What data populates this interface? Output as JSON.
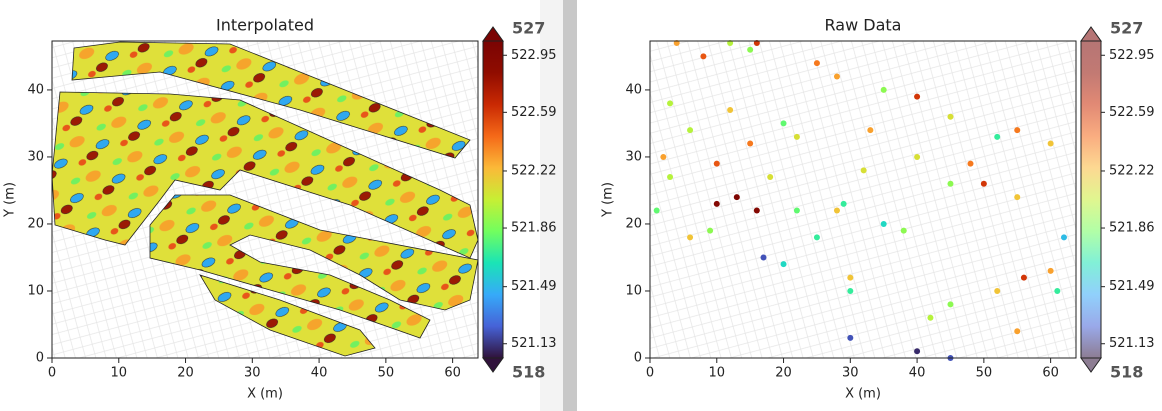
{
  "chart_data": [
    {
      "type": "heatmap",
      "title": "Interpolated",
      "xlabel": "X (m)",
      "ylabel": "Y (m)",
      "xlim": [
        0,
        63.8
      ],
      "ylim": [
        0,
        47.3
      ],
      "xticks": [
        0,
        10,
        20,
        30,
        40,
        50,
        60
      ],
      "yticks": [
        0,
        10,
        20,
        30,
        40
      ],
      "clim": [
        521.04,
        523.04
      ],
      "cticks": [
        522.95,
        522.59,
        522.22,
        521.86,
        521.49,
        521.13
      ],
      "cbar_max_label": 527,
      "cbar_min_label": 518
    },
    {
      "type": "scatter",
      "title": "Raw Data",
      "xlabel": "X (m)",
      "ylabel": "Y (m)",
      "xlim": [
        0,
        63.8
      ],
      "ylim": [
        0,
        47.3
      ],
      "xticks": [
        0,
        10,
        20,
        30,
        40,
        50,
        60
      ],
      "yticks": [
        0,
        10,
        20,
        30,
        40
      ],
      "clim": [
        521.04,
        523.04
      ],
      "cticks": [
        522.95,
        522.59,
        522.22,
        521.86,
        521.49,
        521.13
      ],
      "cbar_max_label": 527,
      "cbar_min_label": 518,
      "x": [
        4,
        8,
        12,
        16,
        25,
        35,
        45,
        52,
        60,
        55,
        40,
        28,
        15,
        3,
        12,
        20,
        22,
        15,
        6,
        2,
        10,
        18,
        3,
        1,
        6,
        9,
        10,
        13,
        16,
        17,
        20,
        30,
        42,
        55,
        45,
        30,
        25,
        22,
        28,
        35,
        38,
        29,
        32,
        45,
        55,
        62,
        50,
        40,
        33,
        48,
        56,
        60,
        52,
        61,
        30,
        40,
        45
      ],
      "y": [
        47,
        45,
        47,
        47,
        44,
        40,
        36,
        33,
        32,
        34,
        39,
        42,
        46,
        38,
        37,
        35,
        33,
        32,
        34,
        30,
        29,
        27,
        27,
        22,
        18,
        19,
        23,
        24,
        22,
        15,
        14,
        10,
        6,
        4,
        8,
        12,
        18,
        22,
        22,
        20,
        19,
        23,
        28,
        26,
        24,
        18,
        26,
        30,
        34,
        29,
        12,
        13,
        10,
        10,
        3,
        1,
        0
      ],
      "values": [
        522.3,
        522.5,
        522.0,
        522.6,
        522.4,
        521.9,
        522.1,
        521.7,
        522.2,
        522.4,
        522.6,
        522.3,
        521.9,
        522.0,
        522.2,
        521.8,
        522.1,
        522.4,
        522.0,
        522.3,
        522.5,
        522.1,
        522.0,
        521.8,
        522.2,
        521.9,
        522.95,
        523.0,
        522.95,
        521.2,
        521.6,
        521.7,
        522.0,
        522.3,
        521.9,
        522.2,
        521.7,
        521.8,
        522.2,
        521.6,
        521.9,
        521.7,
        522.1,
        521.9,
        522.2,
        521.5,
        522.6,
        522.1,
        522.3,
        522.4,
        522.6,
        522.3,
        522.2,
        521.7,
        521.2,
        521.1,
        521.2
      ]
    }
  ]
}
